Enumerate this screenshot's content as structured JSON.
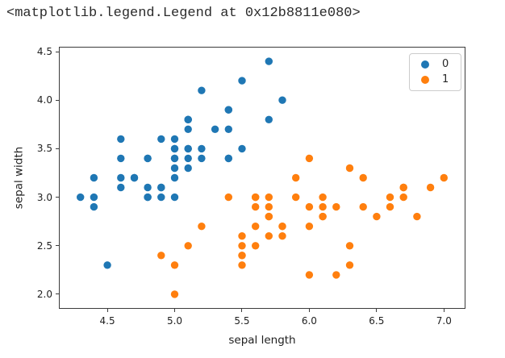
{
  "header": {
    "repr": "<matplotlib.legend.Legend at 0x12b8811e080>"
  },
  "chart_data": {
    "type": "scatter",
    "title": "",
    "xlabel": "sepal length",
    "ylabel": "sepal width",
    "xlim": [
      4.14,
      7.16
    ],
    "ylim": [
      1.85,
      4.55
    ],
    "xticks": [
      4.5,
      5.0,
      5.5,
      6.0,
      6.5,
      7.0
    ],
    "yticks": [
      2.0,
      2.5,
      3.0,
      3.5,
      4.0,
      4.5
    ],
    "grid": false,
    "marker_radius_px": 4.7,
    "frame_color": "#3b3b3b",
    "legend": {
      "location": "upper right",
      "items": [
        {
          "label": "0",
          "color": "#1f77b4"
        },
        {
          "label": "1",
          "color": "#ff7f0e"
        }
      ]
    },
    "series": [
      {
        "name": "0",
        "color": "#1f77b4",
        "points": [
          [
            5.1,
            3.5
          ],
          [
            4.9,
            3.0
          ],
          [
            4.7,
            3.2
          ],
          [
            4.6,
            3.1
          ],
          [
            5.0,
            3.6
          ],
          [
            5.4,
            3.9
          ],
          [
            4.6,
            3.4
          ],
          [
            5.0,
            3.4
          ],
          [
            4.4,
            2.9
          ],
          [
            4.9,
            3.1
          ],
          [
            5.4,
            3.7
          ],
          [
            4.8,
            3.4
          ],
          [
            4.8,
            3.0
          ],
          [
            4.3,
            3.0
          ],
          [
            5.8,
            4.0
          ],
          [
            5.7,
            4.4
          ],
          [
            5.4,
            3.9
          ],
          [
            5.1,
            3.5
          ],
          [
            5.7,
            3.8
          ],
          [
            5.1,
            3.8
          ],
          [
            5.4,
            3.4
          ],
          [
            5.1,
            3.7
          ],
          [
            4.6,
            3.6
          ],
          [
            5.1,
            3.3
          ],
          [
            4.8,
            3.4
          ],
          [
            5.0,
            3.0
          ],
          [
            5.0,
            3.4
          ],
          [
            5.2,
            3.5
          ],
          [
            5.2,
            3.4
          ],
          [
            4.7,
            3.2
          ],
          [
            4.8,
            3.1
          ],
          [
            5.4,
            3.4
          ],
          [
            5.2,
            4.1
          ],
          [
            5.5,
            4.2
          ],
          [
            4.9,
            3.1
          ],
          [
            5.0,
            3.2
          ],
          [
            5.5,
            3.5
          ],
          [
            4.9,
            3.6
          ],
          [
            4.4,
            3.0
          ],
          [
            5.1,
            3.4
          ],
          [
            5.0,
            3.5
          ],
          [
            4.5,
            2.3
          ],
          [
            4.4,
            3.2
          ],
          [
            5.0,
            3.5
          ],
          [
            5.1,
            3.8
          ],
          [
            4.8,
            3.0
          ],
          [
            5.1,
            3.8
          ],
          [
            4.6,
            3.2
          ],
          [
            5.3,
            3.7
          ],
          [
            5.0,
            3.3
          ]
        ]
      },
      {
        "name": "1",
        "color": "#ff7f0e",
        "points": [
          [
            7.0,
            3.2
          ],
          [
            6.4,
            3.2
          ],
          [
            6.9,
            3.1
          ],
          [
            5.5,
            2.3
          ],
          [
            6.5,
            2.8
          ],
          [
            5.7,
            2.8
          ],
          [
            6.3,
            3.3
          ],
          [
            4.9,
            2.4
          ],
          [
            6.6,
            2.9
          ],
          [
            5.2,
            2.7
          ],
          [
            5.0,
            2.0
          ],
          [
            5.9,
            3.0
          ],
          [
            6.0,
            2.2
          ],
          [
            6.1,
            2.9
          ],
          [
            5.6,
            2.9
          ],
          [
            6.7,
            3.1
          ],
          [
            5.6,
            3.0
          ],
          [
            5.8,
            2.7
          ],
          [
            6.2,
            2.2
          ],
          [
            5.6,
            2.5
          ],
          [
            5.9,
            3.2
          ],
          [
            6.1,
            2.8
          ],
          [
            6.3,
            2.5
          ],
          [
            6.1,
            2.8
          ],
          [
            6.4,
            2.9
          ],
          [
            6.6,
            3.0
          ],
          [
            6.8,
            2.8
          ],
          [
            6.7,
            3.0
          ],
          [
            6.0,
            2.9
          ],
          [
            5.7,
            2.6
          ],
          [
            5.5,
            2.4
          ],
          [
            5.5,
            2.4
          ],
          [
            5.8,
            2.7
          ],
          [
            6.0,
            2.7
          ],
          [
            5.4,
            3.0
          ],
          [
            6.0,
            3.4
          ],
          [
            6.7,
            3.1
          ],
          [
            6.3,
            2.3
          ],
          [
            5.6,
            3.0
          ],
          [
            5.5,
            2.5
          ],
          [
            5.5,
            2.6
          ],
          [
            6.1,
            3.0
          ],
          [
            5.8,
            2.6
          ],
          [
            5.0,
            2.3
          ],
          [
            5.6,
            2.7
          ],
          [
            5.7,
            3.0
          ],
          [
            5.7,
            2.9
          ],
          [
            6.2,
            2.9
          ],
          [
            5.1,
            2.5
          ],
          [
            5.7,
            2.8
          ]
        ]
      }
    ]
  }
}
